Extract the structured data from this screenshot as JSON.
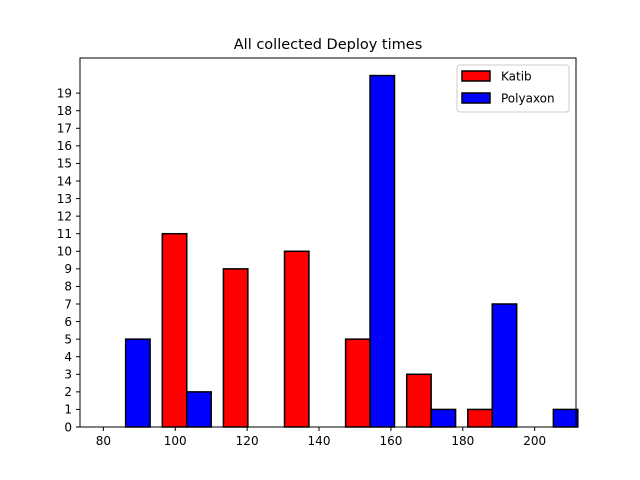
{
  "chart_data": {
    "type": "bar",
    "title": "All collected Deploy times",
    "xlabel": "",
    "ylabel": "",
    "xlim": [
      73.5,
      211.5
    ],
    "ylim": [
      0,
      21
    ],
    "x_ticks": [
      80,
      100,
      120,
      140,
      160,
      180,
      200
    ],
    "y_ticks": [
      0,
      1,
      2,
      3,
      4,
      5,
      6,
      7,
      8,
      9,
      10,
      11,
      12,
      13,
      14,
      15,
      16,
      17,
      18,
      19
    ],
    "bin_edges": [
      76,
      93,
      110,
      127,
      144,
      161,
      178,
      195,
      212
    ],
    "bar_width": 6.8,
    "legend_position": "upper right",
    "grid": false,
    "series": [
      {
        "name": "Katib",
        "color": "#ff0000",
        "values": [
          0,
          11,
          9,
          10,
          5,
          3,
          1,
          0
        ]
      },
      {
        "name": "Polyaxon",
        "color": "#0000ff",
        "values": [
          5,
          2,
          0,
          0,
          20,
          1,
          7,
          1
        ]
      }
    ]
  }
}
